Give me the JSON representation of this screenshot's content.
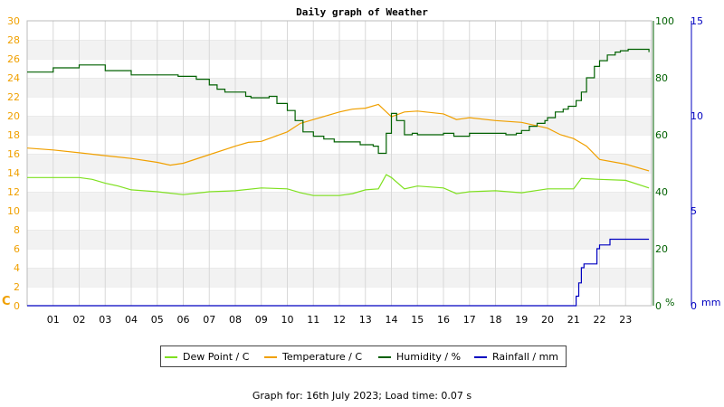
{
  "chart_data": {
    "type": "line",
    "title": "Daily graph of Weather",
    "x_ticks": [
      "01",
      "02",
      "03",
      "04",
      "05",
      "06",
      "07",
      "08",
      "09",
      "10",
      "11",
      "12",
      "13",
      "14",
      "15",
      "16",
      "17",
      "18",
      "19",
      "20",
      "21",
      "22",
      "23"
    ],
    "xlim": [
      0,
      24
    ],
    "axes": {
      "left": {
        "unit_label": "C",
        "ylim": [
          0,
          30
        ],
        "ticks": [
          0,
          2,
          4,
          6,
          8,
          10,
          12,
          14,
          16,
          18,
          20,
          22,
          24,
          26,
          28,
          30
        ],
        "color": "#f0a000"
      },
      "right1": {
        "unit_label": "%",
        "ylim": [
          0,
          100
        ],
        "ticks": [
          0,
          20,
          40,
          60,
          80,
          100
        ],
        "color": "#006000"
      },
      "right2": {
        "unit_label": "mm",
        "ylim": [
          0,
          15
        ],
        "ticks": [
          0,
          5,
          10,
          15
        ],
        "color": "#0000c0"
      }
    },
    "series": [
      {
        "name": "Dew Point / C",
        "axis": "left",
        "color": "#7fe020",
        "x": [
          0,
          1,
          2,
          2.5,
          3,
          3.5,
          4,
          5,
          6,
          7,
          8,
          9,
          10,
          10.5,
          11,
          12,
          12.5,
          13,
          13.5,
          13.8,
          14,
          14.5,
          15,
          16,
          16.5,
          17,
          18,
          19,
          20,
          21,
          21.3,
          22,
          23,
          23.9
        ],
        "y": [
          13.5,
          13.5,
          13.5,
          13.3,
          12.9,
          12.6,
          12.2,
          12,
          11.7,
          12,
          12.1,
          12.4,
          12.3,
          11.9,
          11.6,
          11.6,
          11.8,
          12.2,
          12.3,
          13.8,
          13.5,
          12.3,
          12.6,
          12.4,
          11.8,
          12,
          12.1,
          11.9,
          12.3,
          12.3,
          13.4,
          13.3,
          13.2,
          12.4
        ]
      },
      {
        "name": "Temperature / C",
        "axis": "left",
        "color": "#f0a000",
        "x": [
          0,
          1,
          2,
          3,
          4,
          5,
          5.5,
          6,
          7,
          8,
          8.5,
          9,
          10,
          10.5,
          11,
          12,
          12.5,
          13,
          13.5,
          14,
          14.5,
          15,
          16,
          16.5,
          17,
          18,
          19,
          20,
          20.5,
          21,
          21.5,
          22,
          23,
          23.9
        ],
        "y": [
          16.6,
          16.4,
          16.1,
          15.8,
          15.5,
          15.1,
          14.8,
          15,
          15.9,
          16.8,
          17.2,
          17.3,
          18.3,
          19.2,
          19.6,
          20.4,
          20.7,
          20.8,
          21.2,
          19.9,
          20.4,
          20.5,
          20.2,
          19.6,
          19.8,
          19.5,
          19.3,
          18.7,
          18,
          17.6,
          16.8,
          15.4,
          14.9,
          14.2
        ]
      },
      {
        "name": "Humidity / %",
        "axis": "right1",
        "color": "#006000",
        "x": [
          0,
          0.9,
          1,
          1.7,
          2,
          2.8,
          3,
          3.8,
          4,
          4.9,
          5,
          5.8,
          6.2,
          6.5,
          6.8,
          7,
          7.3,
          7.6,
          8,
          8.4,
          8.6,
          9,
          9.3,
          9.6,
          10,
          10.3,
          10.6,
          11,
          11.4,
          11.8,
          12,
          12.4,
          12.8,
          13,
          13.3,
          13.5,
          13.8,
          14,
          14.2,
          14.5,
          14.8,
          15,
          15.5,
          16,
          16.4,
          16.6,
          17,
          17.5,
          18,
          18.4,
          18.8,
          19,
          19.3,
          19.6,
          19.9,
          20,
          20.3,
          20.6,
          20.8,
          21,
          21.1,
          21.3,
          21.5,
          21.8,
          22,
          22.3,
          22.6,
          22.8,
          23.1,
          23.4,
          23.9
        ],
        "y": [
          82,
          82,
          83.5,
          83.5,
          84.5,
          84.5,
          82.5,
          82.5,
          81,
          81,
          81,
          80.5,
          80.5,
          79.5,
          79.5,
          77.5,
          76,
          75,
          75,
          73.5,
          73,
          73,
          73.5,
          71,
          68.5,
          65,
          61,
          59.5,
          58.5,
          57.5,
          57.5,
          57.5,
          56.5,
          56.5,
          56,
          53.5,
          60.5,
          67.5,
          65,
          60,
          60.5,
          60,
          60,
          60.5,
          59.5,
          59.5,
          60.5,
          60.5,
          60.5,
          60,
          60.5,
          61.5,
          63,
          64,
          65,
          66,
          68,
          69,
          70,
          70,
          72,
          75,
          80,
          84,
          86,
          88,
          89,
          89.5,
          90,
          90,
          89
        ]
      },
      {
        "name": "Rainfall / mm",
        "axis": "right2",
        "color": "#0000c0",
        "x": [
          0,
          21,
          21.1,
          21.2,
          21.3,
          21.4,
          21.5,
          21.8,
          21.9,
          22,
          22.3,
          22.4,
          23,
          23.9
        ],
        "y": [
          0,
          0,
          0.5,
          1.2,
          2,
          2.2,
          2.2,
          2.2,
          3,
          3.2,
          3.2,
          3.5,
          3.5,
          3.5
        ]
      }
    ],
    "grid": true,
    "legend_position": "bottom-center"
  },
  "footer_text": "Graph for: 16th July 2023; Load time: 0.07 s"
}
